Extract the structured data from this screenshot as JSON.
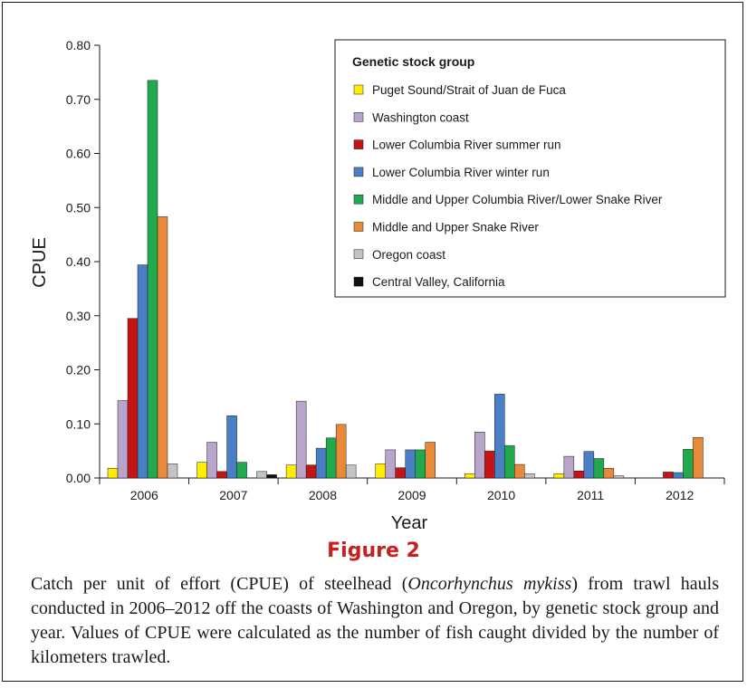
{
  "figure": {
    "label": "Figure 2",
    "caption": {
      "before": "Catch per unit of effort (CPUE) of steelhead (",
      "species": "Oncorhynchus mykiss",
      "after": ") from trawl hauls conducted in 2006–2012 off the coasts of Washington and Oregon, by genetic stock group and year. Values of CPUE were calculated as the number of fish caught divided by the number of kilometers trawled."
    }
  },
  "chart_data": {
    "type": "bar",
    "xlabel": "Year",
    "ylabel": "CPUE",
    "ylim": [
      0,
      0.8
    ],
    "ytick_step": 0.1,
    "yticks": [
      "0.00",
      "0.10",
      "0.20",
      "0.30",
      "0.40",
      "0.50",
      "0.60",
      "0.70",
      "0.80"
    ],
    "grid": false,
    "legend_title": "Genetic stock group",
    "legend_position": "top-right",
    "categories": [
      "2006",
      "2007",
      "2008",
      "2009",
      "2010",
      "2011",
      "2012"
    ],
    "series": [
      {
        "name": "Puget Sound/Strait of Juan de Fuca",
        "color": "#ffee00",
        "values": [
          0.018,
          0.029,
          0.024,
          0.026,
          0.008,
          0.008,
          0
        ]
      },
      {
        "name": "Washington coast",
        "color": "#b9a5cc",
        "values": [
          0.143,
          0.066,
          0.142,
          0.052,
          0.085,
          0.04,
          0
        ]
      },
      {
        "name": "Lower Columbia River summer run",
        "color": "#c41415",
        "values": [
          0.295,
          0.012,
          0.024,
          0.019,
          0.05,
          0.013,
          0.011
        ]
      },
      {
        "name": "Lower Columbia River winter run",
        "color": "#4a7fc6",
        "values": [
          0.394,
          0.115,
          0.055,
          0.052,
          0.155,
          0.049,
          0.01
        ]
      },
      {
        "name": "Middle and Upper Columbia River/Lower Snake River",
        "color": "#20aa4d",
        "values": [
          0.735,
          0.029,
          0.074,
          0.052,
          0.06,
          0.036,
          0.053
        ]
      },
      {
        "name": "Middle and Upper Snake River",
        "color": "#e98a3a",
        "values": [
          0.483,
          0,
          0.099,
          0.066,
          0.025,
          0.018,
          0.075
        ]
      },
      {
        "name": "Oregon coast",
        "color": "#c3c3c3",
        "values": [
          0.026,
          0.012,
          0.024,
          0,
          0.008,
          0.004,
          0
        ]
      },
      {
        "name": "Central Valley, California",
        "color": "#111111",
        "values": [
          0,
          0.006,
          0,
          0,
          0,
          0,
          0
        ]
      }
    ]
  }
}
